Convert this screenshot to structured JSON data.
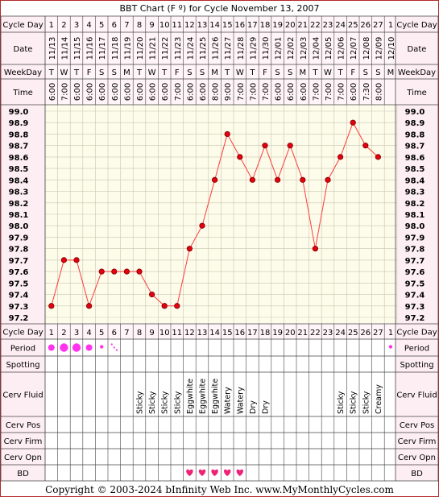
{
  "title": "BBT Chart (F º) for Cycle November 13, 2007",
  "copyright": "Copyright © 2003-2024 bInfinity Web Inc.     www.MyMonthlyCycles.com",
  "colors": {
    "outer_border": "#b02a2a",
    "row_label_bg": "#fdeef3",
    "header_bg": "#fff5f8",
    "plot_bg": "#fdfbea",
    "grid": "#c8c8b0",
    "line": "#ff3b3b",
    "dot_fill": "#e4000f",
    "dot_stroke": "#7a0000",
    "period": "#ff33ee",
    "heart": "#ee2277"
  },
  "row_labels": {
    "cycle_day": "Cycle Day",
    "date": "Date",
    "weekday": "WeekDay",
    "time": "Time",
    "period": "Period",
    "spotting": "Spotting",
    "cerv_fluid": "Cerv Fluid",
    "cerv_pos": "Cerv Pos",
    "cerv_firm": "Cerv Firm",
    "cerv_opn": "Cerv Opn",
    "bd": "BD"
  },
  "temperature_labels": [
    "99.0",
    "98.9",
    "98.8",
    "98.7",
    "98.6",
    "98.5",
    "98.4",
    "98.3",
    "98.2",
    "98.1",
    "98.0",
    "97.9",
    "97.8",
    "97.7",
    "97.6",
    "97.5",
    "97.4",
    "97.3",
    "97.2"
  ],
  "columns": [
    {
      "day": "1",
      "date": "11/13",
      "weekday": "T",
      "time": "6:00",
      "period": "medium",
      "fluid": "",
      "bd": false
    },
    {
      "day": "2",
      "date": "11/14",
      "weekday": "W",
      "time": "7:00",
      "period": "heavy",
      "fluid": "",
      "bd": false
    },
    {
      "day": "3",
      "date": "11/15",
      "weekday": "T",
      "time": "6:00",
      "period": "heavy",
      "fluid": "",
      "bd": false
    },
    {
      "day": "4",
      "date": "11/16",
      "weekday": "F",
      "time": "6:00",
      "period": "medium",
      "fluid": "",
      "bd": false
    },
    {
      "day": "5",
      "date": "11/17",
      "weekday": "S",
      "time": "6:00",
      "period": "light",
      "fluid": "",
      "bd": false
    },
    {
      "day": "6",
      "date": "11/18",
      "weekday": "S",
      "time": "6:00",
      "period": "spotting",
      "fluid": "",
      "bd": false
    },
    {
      "day": "7",
      "date": "11/19",
      "weekday": "M",
      "time": "6:00",
      "period": "",
      "fluid": "",
      "bd": false
    },
    {
      "day": "8",
      "date": "11/20",
      "weekday": "T",
      "time": "6:00",
      "period": "",
      "fluid": "Sticky",
      "bd": false
    },
    {
      "day": "9",
      "date": "11/21",
      "weekday": "W",
      "time": "6:00",
      "period": "",
      "fluid": "Sticky",
      "bd": false
    },
    {
      "day": "10",
      "date": "11/22",
      "weekday": "T",
      "time": "6:00",
      "period": "",
      "fluid": "Sticky",
      "bd": false
    },
    {
      "day": "11",
      "date": "11/23",
      "weekday": "F",
      "time": "7:00",
      "period": "",
      "fluid": "Sticky",
      "bd": false
    },
    {
      "day": "12",
      "date": "11/24",
      "weekday": "S",
      "time": "6:00",
      "period": "",
      "fluid": "Eggwhite",
      "bd": true
    },
    {
      "day": "13",
      "date": "11/25",
      "weekday": "S",
      "time": "6:00",
      "period": "",
      "fluid": "Eggwhite",
      "bd": true
    },
    {
      "day": "14",
      "date": "11/26",
      "weekday": "M",
      "time": "8:00",
      "period": "",
      "fluid": "Eggwhite",
      "bd": true
    },
    {
      "day": "15",
      "date": "11/27",
      "weekday": "T",
      "time": "9:00",
      "period": "",
      "fluid": "Watery",
      "bd": true
    },
    {
      "day": "16",
      "date": "11/28",
      "weekday": "W",
      "time": "7:00",
      "period": "",
      "fluid": "Watery",
      "bd": true
    },
    {
      "day": "17",
      "date": "11/29",
      "weekday": "T",
      "time": "7:00",
      "period": "",
      "fluid": "Dry",
      "bd": false
    },
    {
      "day": "18",
      "date": "11/30",
      "weekday": "F",
      "time": "7:00",
      "period": "",
      "fluid": "Dry",
      "bd": false
    },
    {
      "day": "19",
      "date": "12/01",
      "weekday": "S",
      "time": "6:00",
      "period": "",
      "fluid": "",
      "bd": false
    },
    {
      "day": "20",
      "date": "12/02",
      "weekday": "S",
      "time": "6:00",
      "period": "",
      "fluid": "",
      "bd": false
    },
    {
      "day": "21",
      "date": "12/03",
      "weekday": "M",
      "time": "6:00",
      "period": "",
      "fluid": "",
      "bd": false
    },
    {
      "day": "22",
      "date": "12/04",
      "weekday": "T",
      "time": "7:00",
      "period": "",
      "fluid": "",
      "bd": false
    },
    {
      "day": "23",
      "date": "12/05",
      "weekday": "W",
      "time": "7:00",
      "period": "",
      "fluid": "",
      "bd": false
    },
    {
      "day": "24",
      "date": "12/06",
      "weekday": "T",
      "time": "7:00",
      "period": "",
      "fluid": "Sticky",
      "bd": false
    },
    {
      "day": "25",
      "date": "12/07",
      "weekday": "F",
      "time": "6:00",
      "period": "",
      "fluid": "Sticky",
      "bd": false
    },
    {
      "day": "26",
      "date": "12/08",
      "weekday": "S",
      "time": "7:30",
      "period": "",
      "fluid": "Sticky",
      "bd": false
    },
    {
      "day": "27",
      "date": "12/09",
      "weekday": "S",
      "time": "8:00",
      "period": "",
      "fluid": "Creamy",
      "bd": false
    },
    {
      "day": "1",
      "date": "12/10",
      "weekday": "M",
      "time": "",
      "period": "light",
      "fluid": "",
      "bd": false
    }
  ],
  "chart_data": {
    "type": "line",
    "title": "BBT Chart (F º) for Cycle November 13, 2007",
    "x": [
      1,
      2,
      3,
      4,
      5,
      6,
      7,
      8,
      9,
      10,
      11,
      12,
      13,
      14,
      15,
      16,
      17,
      18,
      19,
      20,
      21,
      22,
      23,
      24,
      25,
      26,
      27
    ],
    "values": [
      97.3,
      97.7,
      97.7,
      97.3,
      97.6,
      97.6,
      97.6,
      97.6,
      97.4,
      97.3,
      97.3,
      97.8,
      98.0,
      98.4,
      98.8,
      98.6,
      98.4,
      98.7,
      98.4,
      98.7,
      98.4,
      97.8,
      98.4,
      98.6,
      98.9,
      98.7,
      98.6
    ],
    "ylim": [
      97.2,
      99.0
    ],
    "ytick_step": 0.1,
    "grid": true
  }
}
